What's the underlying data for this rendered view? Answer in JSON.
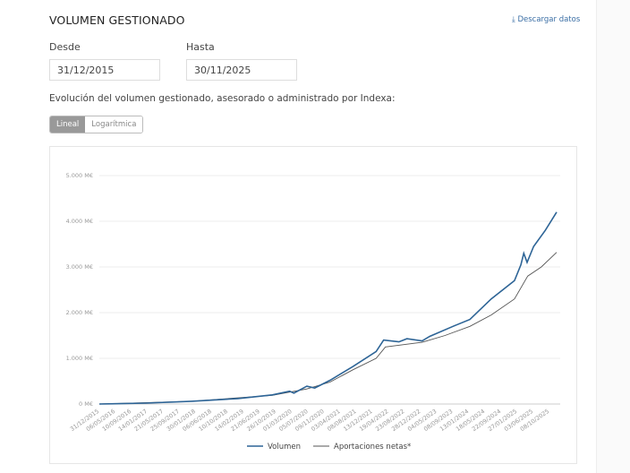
{
  "header": {
    "title": "VOLUMEN GESTIONADO",
    "download_label": "Descargar datos",
    "download_icon": "download-icon"
  },
  "filters": {
    "from_label": "Desde",
    "from_value": "31/12/2015",
    "to_label": "Hasta",
    "to_value": "30/11/2025"
  },
  "description": "Evolución del volumen gestionado, asesorado o administrado por Indexa:",
  "scale_toggle": {
    "options": [
      "Lineal",
      "Logarítmica"
    ],
    "selected": "Lineal"
  },
  "chart_data": {
    "type": "line",
    "ylim": [
      0,
      5000
    ],
    "y_ticks": [
      "0 M€",
      "1.000 M€",
      "2.000 M€",
      "3.000 M€",
      "4.000 M€",
      "5.000 M€"
    ],
    "y_tick_values": [
      0,
      1000,
      2000,
      3000,
      4000,
      5000
    ],
    "x_range": [
      "2015-12-31",
      "2025-11-30"
    ],
    "x_ticks": [
      "31/12/2015",
      "06/05/2016",
      "10/09/2016",
      "14/01/2017",
      "21/05/2017",
      "25/09/2017",
      "30/01/2018",
      "06/06/2018",
      "10/10/2018",
      "14/02/2019",
      "21/06/2019",
      "26/10/2019",
      "01/03/2020",
      "05/07/2020",
      "09/11/2020",
      "03/04/2021",
      "08/08/2021",
      "13/12/2021",
      "19/04/2022",
      "23/08/2022",
      "28/12/2022",
      "04/05/2023",
      "08/09/2023",
      "13/01/2024",
      "18/05/2024",
      "22/09/2024",
      "27/01/2025",
      "03/06/2025",
      "08/10/2025"
    ],
    "grid": true,
    "legend_position": "bottom",
    "series": [
      {
        "name": "Volumen",
        "color": "#2d6496",
        "points": [
          [
            "2015-12-31",
            0
          ],
          [
            "2017-01-01",
            20
          ],
          [
            "2018-01-01",
            60
          ],
          [
            "2019-01-01",
            120
          ],
          [
            "2019-10-01",
            200
          ],
          [
            "2020-02-15",
            280
          ],
          [
            "2020-03-20",
            240
          ],
          [
            "2020-07-01",
            390
          ],
          [
            "2020-09-01",
            350
          ],
          [
            "2020-12-31",
            520
          ],
          [
            "2021-06-30",
            820
          ],
          [
            "2021-12-31",
            1150
          ],
          [
            "2022-03-01",
            1400
          ],
          [
            "2022-06-30",
            1360
          ],
          [
            "2022-09-01",
            1430
          ],
          [
            "2022-12-31",
            1380
          ],
          [
            "2023-03-01",
            1480
          ],
          [
            "2023-09-01",
            1700
          ],
          [
            "2024-01-13",
            1850
          ],
          [
            "2024-06-30",
            2300
          ],
          [
            "2024-12-31",
            2700
          ],
          [
            "2025-02-20",
            3050
          ],
          [
            "2025-03-15",
            3300
          ],
          [
            "2025-04-10",
            3100
          ],
          [
            "2025-06-01",
            3450
          ],
          [
            "2025-09-01",
            3800
          ],
          [
            "2025-11-30",
            4200
          ]
        ]
      },
      {
        "name": "Aportaciones netas*",
        "color": "#555555",
        "points": [
          [
            "2015-12-31",
            0
          ],
          [
            "2018-01-01",
            60
          ],
          [
            "2019-10-01",
            190
          ],
          [
            "2020-06-30",
            330
          ],
          [
            "2020-12-31",
            480
          ],
          [
            "2021-06-30",
            750
          ],
          [
            "2021-12-31",
            1000
          ],
          [
            "2022-03-15",
            1250
          ],
          [
            "2022-12-31",
            1350
          ],
          [
            "2023-06-30",
            1500
          ],
          [
            "2024-01-13",
            1700
          ],
          [
            "2024-06-30",
            1950
          ],
          [
            "2024-12-31",
            2300
          ],
          [
            "2025-04-15",
            2800
          ],
          [
            "2025-08-01",
            3000
          ],
          [
            "2025-11-30",
            3320
          ]
        ]
      }
    ]
  }
}
